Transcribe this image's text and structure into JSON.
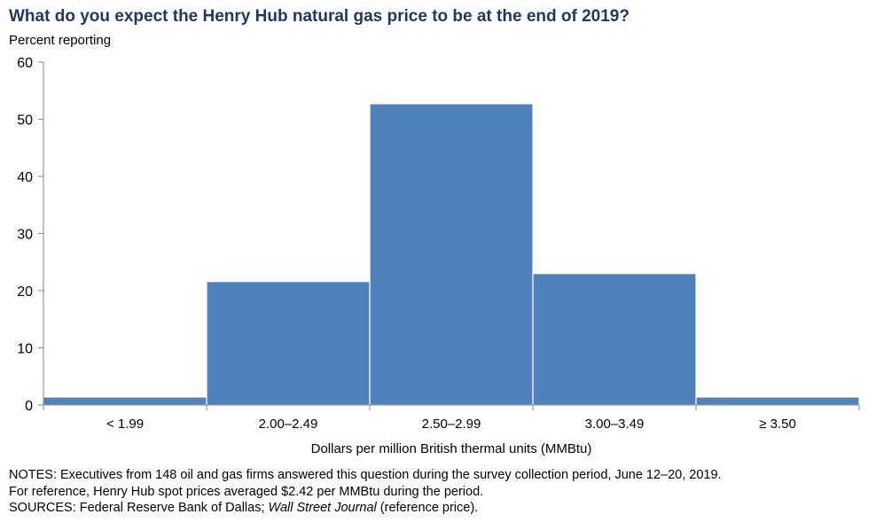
{
  "title": "What do you expect the Henry Hub natural gas price to be at the end of 2019?",
  "subtitle": "Percent reporting",
  "chart_data": {
    "type": "bar",
    "title": "What do you expect the Henry Hub natural gas price to be at the end of 2019?",
    "ylabel": "Percent reporting",
    "xlabel": "Dollars per million British thermal units (MMBtu)",
    "categories": [
      "< 1.99",
      "2.00–2.49",
      "2.50–2.99",
      "3.00–3.49",
      "≥ 3.50"
    ],
    "values": [
      1.4,
      21.6,
      52.7,
      23.0,
      1.4
    ],
    "ylim": [
      0,
      60
    ],
    "yticks": [
      0,
      10,
      20,
      30,
      40,
      50,
      60
    ],
    "grid": false,
    "bar_color": "#4f81bd"
  },
  "notes": {
    "line1": "NOTES: Executives from 148 oil and gas firms answered this question during the survey collection period, June 12–20, 2019.",
    "line2": "For reference, Henry Hub spot prices averaged $2.42 per MMBtu during the period.",
    "sources_prefix": "SOURCES: Federal Reserve Bank of Dallas; ",
    "sources_italic": "Wall Street Journal",
    "sources_suffix": " (reference price)."
  }
}
